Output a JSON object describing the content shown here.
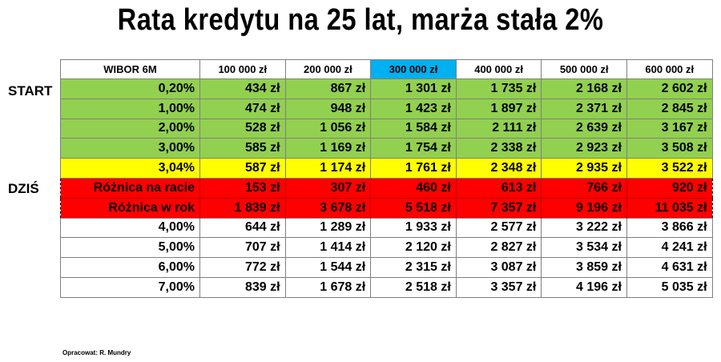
{
  "title": "Rata kredytu na 25 lat, marża stała 2%",
  "labels": {
    "start": "START",
    "today": "DZIŚ"
  },
  "header": [
    "WIBOR 6M",
    "100 000 zł",
    "200 000 zł",
    "300 000 zł",
    "400 000 zł",
    "500 000 zł",
    "600 000 zł"
  ],
  "highlight_column": "300 000 zł",
  "colors": {
    "green": "#92d050",
    "yellow": "#ffff00",
    "red": "#ff0000",
    "highlight": "#00b0f0"
  },
  "rows": [
    {
      "label": "0,20%",
      "values": [
        "434 zł",
        "867 zł",
        "1 301 zł",
        "1 735 zł",
        "2 168 zł",
        "2 602 zł"
      ]
    },
    {
      "label": "1,00%",
      "values": [
        "474 zł",
        "948 zł",
        "1 423 zł",
        "1 897 zł",
        "2 371 zł",
        "2 845 zł"
      ]
    },
    {
      "label": "2,00%",
      "values": [
        "528 zł",
        "1 056 zł",
        "1 584 zł",
        "2 111 zł",
        "2 639 zł",
        "3 167 zł"
      ]
    },
    {
      "label": "3,00%",
      "values": [
        "585 zł",
        "1 169 zł",
        "1 754 zł",
        "2 338 zł",
        "2 923 zł",
        "3 508 zł"
      ]
    },
    {
      "label": "3,04%",
      "values": [
        "587 zł",
        "1 174 zł",
        "1 761 zł",
        "2 348 zł",
        "2 935 zł",
        "3 522 zł"
      ]
    },
    {
      "label": "Różnica na racie",
      "values": [
        "153 zł",
        "307 zł",
        "460 zł",
        "613 zł",
        "766 zł",
        "920 zł"
      ]
    },
    {
      "label": "Różnica w rok",
      "values": [
        "1 839 zł",
        "3 678 zł",
        "5 518 zł",
        "7 357 zł",
        "9 196 zł",
        "11 035 zł"
      ]
    },
    {
      "label": "4,00%",
      "values": [
        "644 zł",
        "1 289 zł",
        "1 933 zł",
        "2 577 zł",
        "3 222 zł",
        "3 866 zł"
      ]
    },
    {
      "label": "5,00%",
      "values": [
        "707 zł",
        "1 414 zł",
        "2 120 zł",
        "2 827 zł",
        "3 534 zł",
        "4 241 zł"
      ]
    },
    {
      "label": "6,00%",
      "values": [
        "772 zł",
        "1 544 zł",
        "2 315 zł",
        "3 087 zł",
        "3 859 zł",
        "4 631 zł"
      ]
    },
    {
      "label": "7,00%",
      "values": [
        "839 zł",
        "1 678 zł",
        "2 518 zł",
        "3 357 zł",
        "4 196 zł",
        "5 035 zł"
      ]
    }
  ],
  "source": "Opracowat: R. Mundry"
}
